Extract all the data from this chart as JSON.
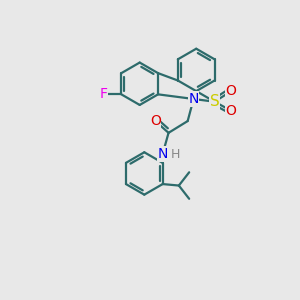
{
  "background_color": "#e8e8e8",
  "bond_color": "#2d6b6b",
  "bond_width": 1.6,
  "atom_colors": {
    "F": "#ee00ee",
    "N": "#0000ee",
    "S": "#cccc00",
    "O": "#dd0000",
    "H": "#888888",
    "C": "#2d6b6b"
  },
  "font_size_atom": 10,
  "font_size_H": 9,
  "fig_size": [
    3.0,
    3.0
  ],
  "dpi": 100,
  "xlim": [
    0,
    10
  ],
  "ylim": [
    0,
    10
  ]
}
